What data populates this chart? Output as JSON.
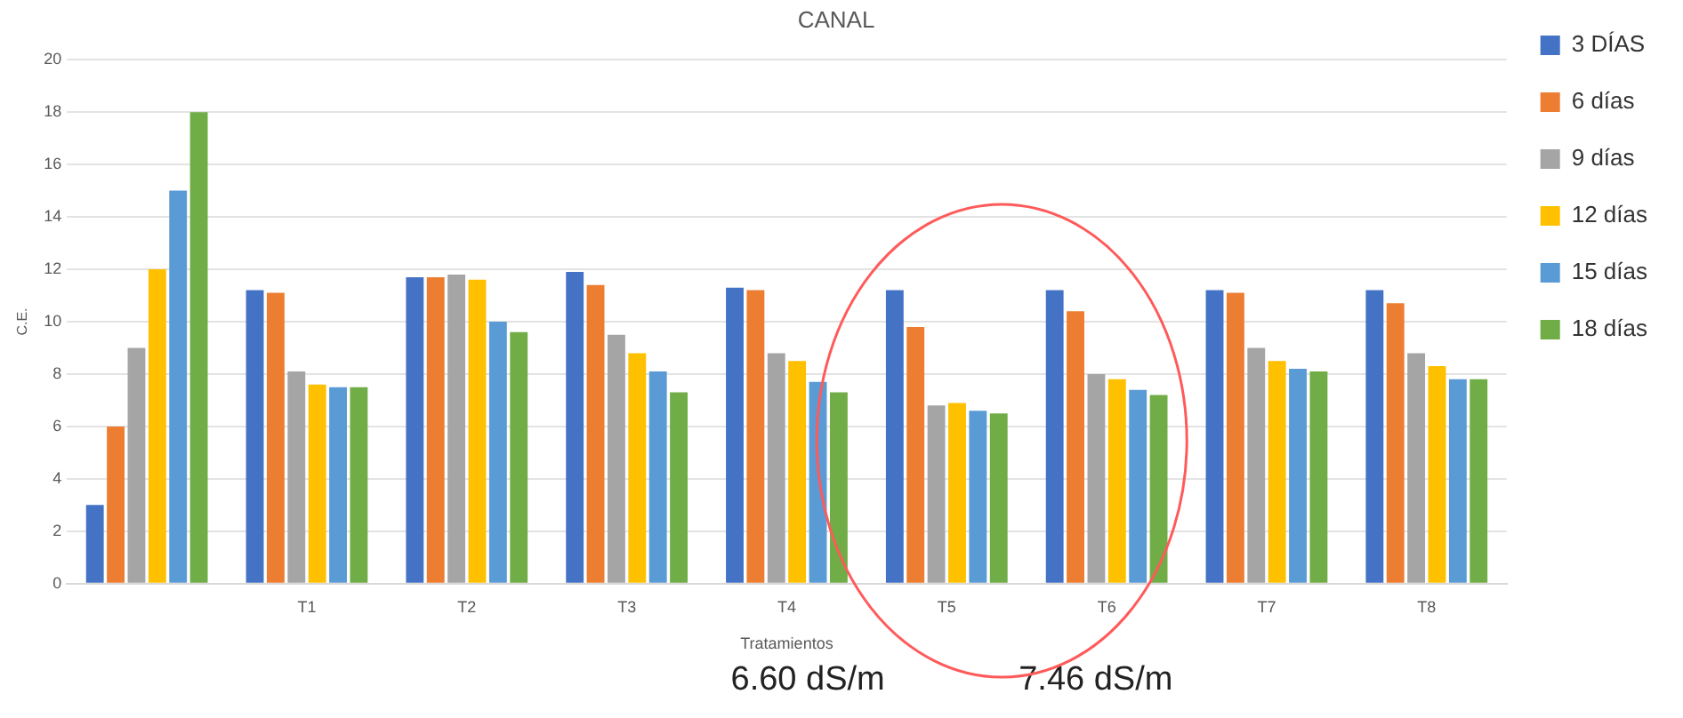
{
  "chart_data": {
    "type": "bar",
    "title": "CANAL",
    "xlabel": "Tratamientos",
    "ylabel": "C.E.",
    "categories": [
      null,
      "T1",
      "T2",
      "T3",
      "T4",
      "T5",
      "T6",
      "T7",
      "T8"
    ],
    "series": [
      {
        "name": "3 DÍAS",
        "color": "#4472c4",
        "values": [
          3,
          11.2,
          11.7,
          11.9,
          11.3,
          11.2,
          11.2,
          11.2,
          11.2
        ]
      },
      {
        "name": "6 días",
        "color": "#ed7d31",
        "values": [
          6,
          11.1,
          11.7,
          11.4,
          11.2,
          9.8,
          10.4,
          11.1,
          10.7
        ]
      },
      {
        "name": "9 días",
        "color": "#a5a5a5",
        "values": [
          9,
          8.1,
          11.8,
          9.5,
          8.8,
          6.8,
          8.0,
          9.0,
          8.8
        ]
      },
      {
        "name": "12 días",
        "color": "#ffc000",
        "values": [
          12,
          7.6,
          11.6,
          8.8,
          8.5,
          6.9,
          7.8,
          8.5,
          8.3
        ]
      },
      {
        "name": "15 días",
        "color": "#5b9bd5",
        "values": [
          15,
          7.5,
          10.0,
          8.1,
          7.7,
          6.6,
          7.4,
          8.2,
          7.8
        ]
      },
      {
        "name": "18 días",
        "color": "#70ad47",
        "values": [
          18,
          7.5,
          9.6,
          7.3,
          7.3,
          6.5,
          7.2,
          8.1,
          7.8
        ]
      }
    ],
    "ylim": [
      0,
      20
    ],
    "yticks": [
      0,
      2,
      4,
      6,
      8,
      10,
      12,
      14,
      16,
      18,
      20
    ],
    "grid": "y",
    "legend": "right",
    "annotations": [
      "6.60 dS/m",
      "7.46 dS/m"
    ]
  }
}
